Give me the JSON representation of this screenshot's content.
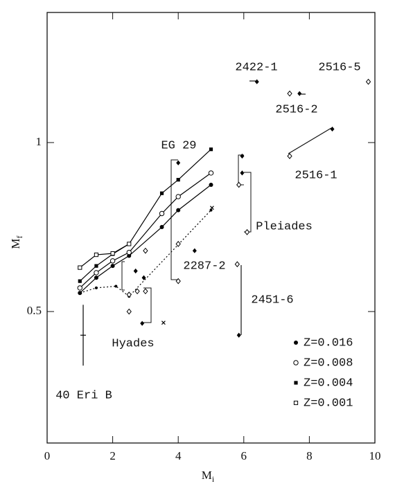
{
  "chart_data": {
    "type": "scatter",
    "xlim": [
      0,
      10
    ],
    "ylim": [
      0.111,
      1.385
    ],
    "xticks": [
      0,
      2,
      4,
      6,
      8,
      10
    ],
    "yticks": [
      0.5,
      1
    ],
    "x_label": {
      "main": "M",
      "sub": "i"
    },
    "y_label": {
      "main": "M",
      "sub": "f"
    },
    "legend": "lower right",
    "series": [
      {
        "name": "Z=0.016",
        "marker": "filled-circle",
        "line": "solid",
        "color": "#000000",
        "x": [
          1,
          1.5,
          2,
          2.5,
          3.5,
          4,
          5
        ],
        "values": [
          0.555,
          0.6,
          0.635,
          0.665,
          0.75,
          0.8,
          0.875
        ]
      },
      {
        "name": "Z=0.008",
        "marker": "open-circle",
        "line": "solid",
        "color": "#000000",
        "x": [
          1,
          1.5,
          2,
          2.5,
          3.5,
          4,
          5
        ],
        "values": [
          0.57,
          0.615,
          0.65,
          0.675,
          0.79,
          0.84,
          0.91
        ]
      },
      {
        "name": "Z=0.004",
        "marker": "filled-square",
        "line": "solid",
        "color": "#000000",
        "x": [
          1,
          1.5,
          2,
          2.5,
          3.5,
          4,
          5
        ],
        "values": [
          0.59,
          0.635,
          0.67,
          0.7,
          0.85,
          0.89,
          0.98
        ]
      },
      {
        "name": "Z=0.001",
        "marker": "open-square",
        "line": "solid",
        "color": "#000000",
        "x": [
          1,
          1.5,
          2,
          2.5
        ],
        "values": [
          0.63,
          0.668,
          0.672,
          0.7
        ]
      },
      {
        "marker": "small-dot",
        "line": "dotted",
        "color": "#000000",
        "x": [
          1,
          1.5,
          2.1,
          2.5,
          5
        ],
        "values": [
          0.555,
          0.57,
          0.575,
          0.545,
          0.8
        ]
      },
      {
        "marker": "cross",
        "line": "none",
        "color": "#000000",
        "x": [
          3.55,
          5.03
        ],
        "values": [
          0.467,
          0.807
        ]
      },
      {
        "marker": "filled-diamond",
        "line": "none",
        "color": "#000000",
        "x": [
          6.4,
          7.7,
          8.7,
          4,
          5.95,
          5.95,
          4.5,
          5.85,
          2.7,
          2.95,
          2.9
        ],
        "values": [
          1.18,
          1.145,
          1.04,
          0.94,
          0.96,
          0.91,
          0.68,
          0.43,
          0.62,
          0.6,
          0.465
        ]
      },
      {
        "marker": "open-diamond",
        "line": "none",
        "color": "#000000",
        "x": [
          9.8,
          7.4,
          7.4,
          4,
          5.85,
          6.1,
          4,
          5.8,
          2.5,
          2.5,
          3,
          3,
          2.75
        ],
        "values": [
          1.18,
          1.145,
          0.96,
          0.7,
          0.875,
          0.735,
          0.59,
          0.64,
          0.5,
          0.55,
          0.68,
          0.56,
          0.56
        ]
      },
      {
        "marker": "error-bar",
        "line": "none",
        "color": "#000000",
        "x": [
          1.1
        ],
        "values": [
          0.43
        ],
        "errors": [
          0.09
        ]
      }
    ],
    "annotations": [
      "2422-1",
      "2516-5",
      "2516-2",
      "EG 29",
      "2516-1",
      "Pleiades",
      "2287-2",
      "2451-6",
      "Hyades",
      "40 Eri B"
    ]
  }
}
